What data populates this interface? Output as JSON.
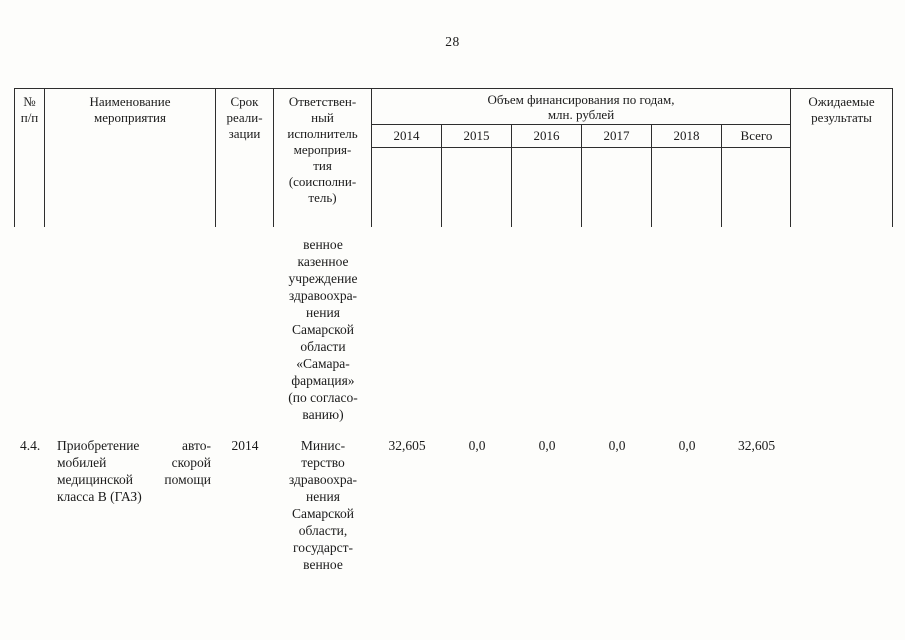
{
  "page": {
    "number": "28"
  },
  "table": {
    "header": {
      "num": "№\nп/п",
      "name": "Наименование\nмероприятия",
      "term": "Срок\nреали-\nзации",
      "executor": "Ответствен-\nный\nисполнитель\nмероприя-\nтия\n(соисполни-\nтель)",
      "financing": "Объем финансирования по годам,\nмлн. рублей",
      "years": [
        "2014",
        "2015",
        "2016",
        "2017",
        "2018",
        "Всего"
      ],
      "results": "Ожидаемые\nрезультаты"
    },
    "rows": [
      {
        "executor": "венное\nказенное\nучреждение\nздравоохра-\nнения\nСамарской\nобласти\n«Самара-\nфармация»\n(по согласо-\nванию)"
      },
      {
        "num": "4.4.",
        "name_lines": [
          "Приобретение авто-",
          "мобилей скорой",
          "медицинской помощи",
          "класса В (ГАЗ)"
        ],
        "term": "2014",
        "executor": "Минис-\nтерство\nздравоохра-\nнения\nСамарской\nобласти,\nгосударст-\nвенное",
        "values": [
          "32,605",
          "0,0",
          "0,0",
          "0,0",
          "0,0",
          "32,605"
        ]
      }
    ]
  }
}
